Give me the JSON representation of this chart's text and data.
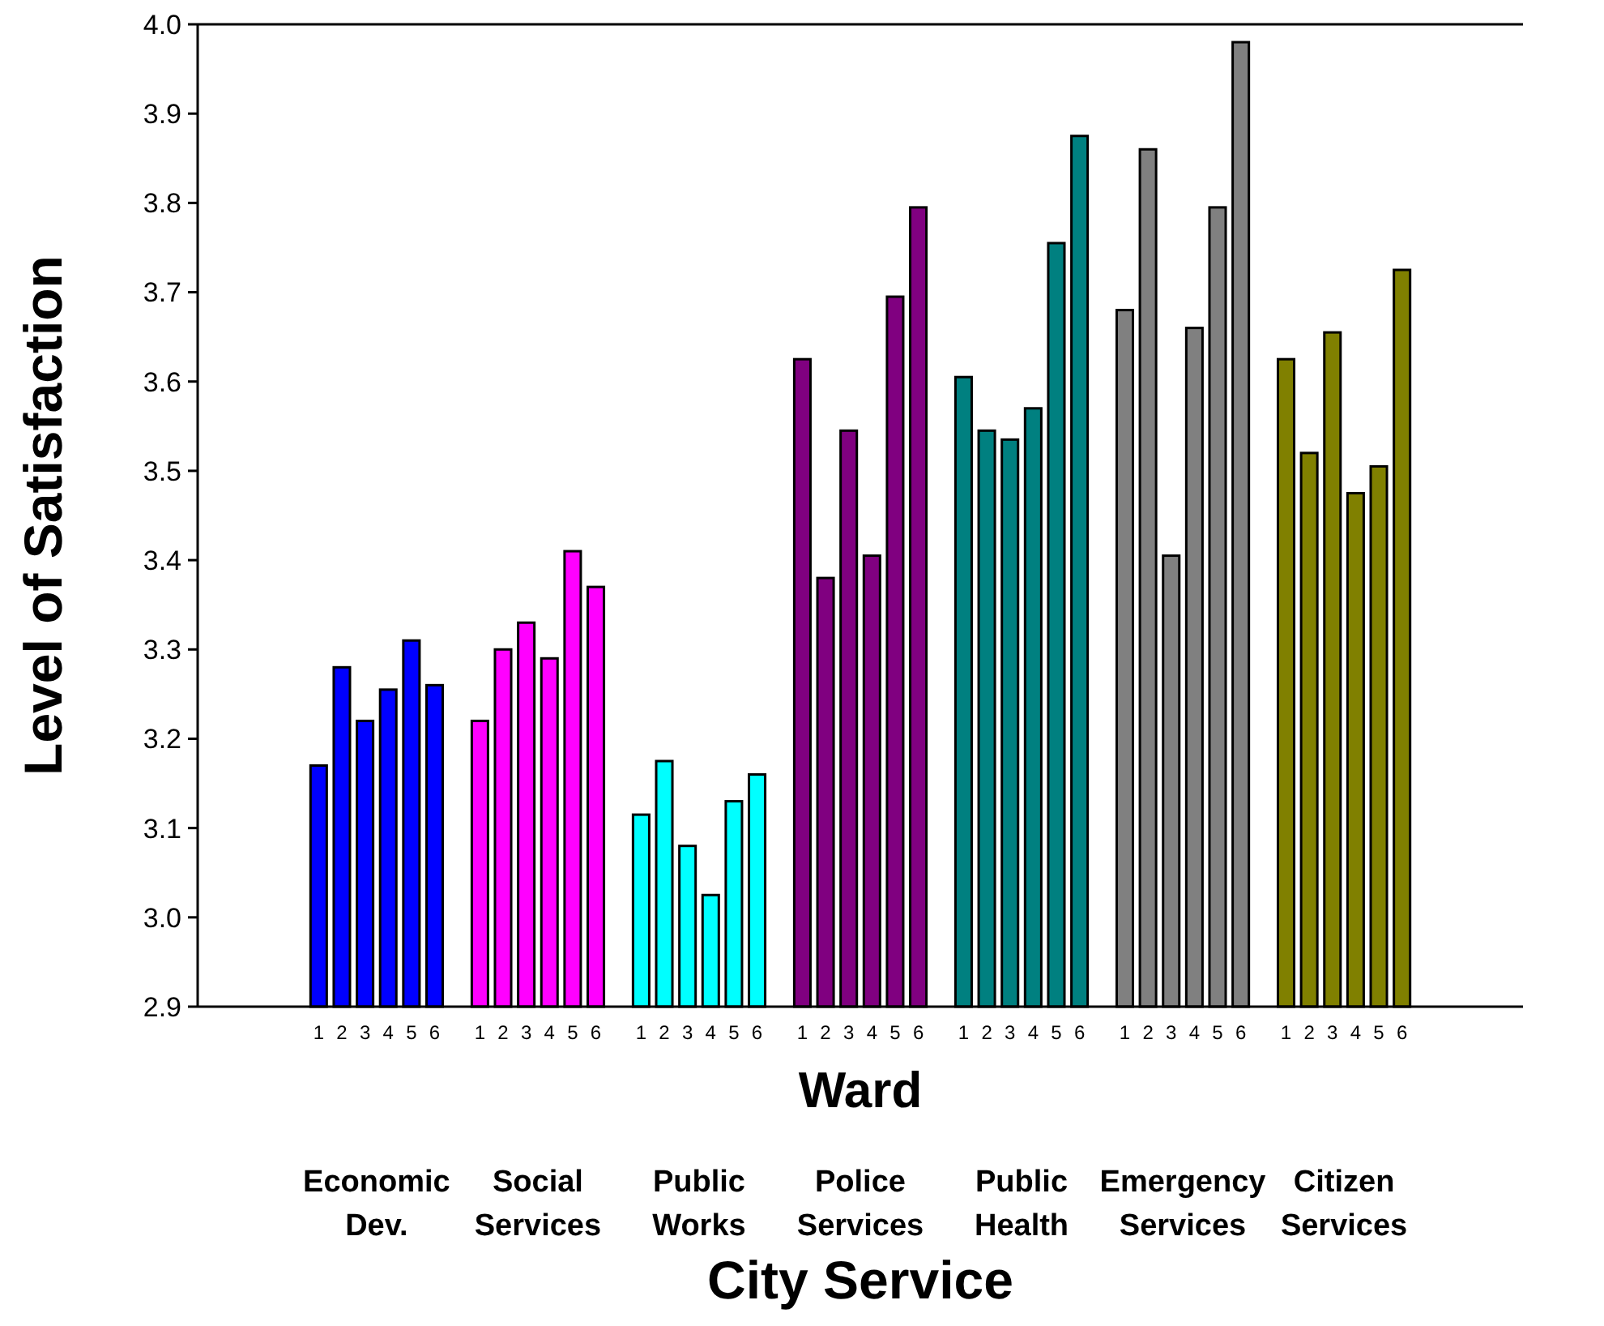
{
  "chart_data": {
    "type": "bar",
    "xlabel": "City Service",
    "ylabel": "Level of Satisfaction",
    "annotations": [
      "Ward"
    ],
    "categories": [
      "Economic Dev.",
      "Social Services",
      "Public Works",
      "Police Services",
      "Public Health",
      "Emergency Services",
      "Citizen Services"
    ],
    "series": [
      {
        "name": "1",
        "colors": [
          "#0000ff",
          "#ff00ff",
          "#00ffff",
          "#800080",
          "#008080",
          "#808080",
          "#808000"
        ],
        "values": [
          3.17,
          3.22,
          3.115,
          3.625,
          3.605,
          3.68,
          3.625
        ]
      },
      {
        "name": "2",
        "colors": [
          "#0000ff",
          "#ff00ff",
          "#00ffff",
          "#800080",
          "#008080",
          "#808080",
          "#808000"
        ],
        "values": [
          3.28,
          3.3,
          3.175,
          3.38,
          3.545,
          3.86,
          3.52
        ]
      },
      {
        "name": "3",
        "colors": [
          "#0000ff",
          "#ff00ff",
          "#00ffff",
          "#800080",
          "#008080",
          "#808080",
          "#808000"
        ],
        "values": [
          3.22,
          3.33,
          3.08,
          3.545,
          3.535,
          3.405,
          3.655
        ]
      },
      {
        "name": "4",
        "colors": [
          "#0000ff",
          "#ff00ff",
          "#00ffff",
          "#800080",
          "#008080",
          "#808080",
          "#808000"
        ],
        "values": [
          3.255,
          3.29,
          3.025,
          3.405,
          3.57,
          3.66,
          3.475
        ]
      },
      {
        "name": "5",
        "colors": [
          "#0000ff",
          "#ff00ff",
          "#00ffff",
          "#800080",
          "#008080",
          "#808080",
          "#808000"
        ],
        "values": [
          3.31,
          3.41,
          3.13,
          3.695,
          3.755,
          3.795,
          3.505
        ]
      },
      {
        "name": "6",
        "colors": [
          "#0000ff",
          "#ff00ff",
          "#00ffff",
          "#800080",
          "#008080",
          "#808080",
          "#808000"
        ],
        "values": [
          3.26,
          3.37,
          3.16,
          3.795,
          3.875,
          3.98,
          3.725
        ]
      }
    ],
    "ylim": [
      2.9,
      4.0
    ],
    "yticks": [
      {
        "value": 2.9,
        "label": "2.9"
      },
      {
        "value": 3.0,
        "label": "3.0"
      },
      {
        "value": 3.1,
        "label": "3.1"
      },
      {
        "value": 3.2,
        "label": "3.2"
      },
      {
        "value": 3.3,
        "label": "3.3"
      },
      {
        "value": 3.4,
        "label": "3.4"
      },
      {
        "value": 3.5,
        "label": "3.5"
      },
      {
        "value": 3.6,
        "label": "3.6"
      },
      {
        "value": 3.7,
        "label": "3.7"
      },
      {
        "value": 3.8,
        "label": "3.8"
      },
      {
        "value": 3.9,
        "label": "3.9"
      },
      {
        "value": 4.0,
        "label": "4.0"
      }
    ],
    "grid": false
  }
}
